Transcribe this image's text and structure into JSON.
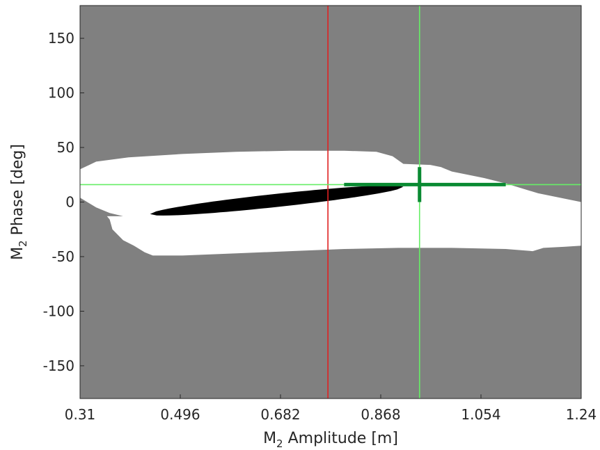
{
  "chart_data": {
    "type": "heatmap",
    "title": "",
    "xlabel": {
      "prefix": "M",
      "sub": "2",
      "suffix": " Amplitude [m]"
    },
    "ylabel": {
      "prefix": "M",
      "sub": "2",
      "suffix": " Phase [deg]"
    },
    "xlim": [
      0.31,
      1.24
    ],
    "ylim": [
      -180,
      180
    ],
    "x_ticks": [
      0.31,
      0.496,
      0.682,
      0.868,
      1.054,
      1.24
    ],
    "x_tick_labels": [
      "0.31",
      "0.496",
      "0.682",
      "0.868",
      "1.054",
      "1.24"
    ],
    "y_ticks": [
      150,
      100,
      50,
      0,
      -50,
      -100,
      -150
    ],
    "y_tick_labels": [
      "150",
      "100",
      "50",
      "0",
      "-50",
      "-100",
      "-150"
    ],
    "grid": false,
    "colors": {
      "background_region": "#808080",
      "feasible_region": "#ffffff",
      "best_region": "#000000",
      "crosshair_line": "#66ee66",
      "estimate_bar": "#0a8a32",
      "reference_line": "#e02020"
    },
    "regions": {
      "feasible_outline": [
        [
          0.31,
          30
        ],
        [
          0.34,
          37
        ],
        [
          0.4,
          41
        ],
        [
          0.5,
          44
        ],
        [
          0.6,
          46
        ],
        [
          0.7,
          47
        ],
        [
          0.8,
          47
        ],
        [
          0.86,
          46
        ],
        [
          0.89,
          42
        ],
        [
          0.91,
          35
        ],
        [
          0.96,
          34
        ],
        [
          0.98,
          32
        ],
        [
          1.0,
          28
        ],
        [
          1.02,
          26
        ],
        [
          1.06,
          22
        ],
        [
          1.1,
          17
        ],
        [
          1.16,
          8
        ],
        [
          1.24,
          0
        ],
        [
          1.24,
          -40
        ],
        [
          1.21,
          -41
        ],
        [
          1.17,
          -42
        ],
        [
          1.15,
          -45
        ],
        [
          1.1,
          -43
        ],
        [
          1.0,
          -42
        ],
        [
          0.9,
          -42
        ],
        [
          0.8,
          -43
        ],
        [
          0.7,
          -45
        ],
        [
          0.6,
          -47
        ],
        [
          0.5,
          -49
        ],
        [
          0.445,
          -49
        ],
        [
          0.43,
          -46
        ],
        [
          0.41,
          -40
        ],
        [
          0.39,
          -35
        ],
        [
          0.37,
          -25
        ],
        [
          0.365,
          -16
        ],
        [
          0.36,
          -13
        ],
        [
          0.39,
          -13
        ],
        [
          0.365,
          -10
        ],
        [
          0.34,
          -5
        ],
        [
          0.31,
          4
        ]
      ],
      "best_fit_ellipse": {
        "endpoints": [
          [
            0.44,
            -11
          ],
          [
            0.91,
            14
          ]
        ],
        "half_width_deg": 6
      }
    },
    "crosshair": {
      "x": 0.94,
      "y": 16
    },
    "estimate_bars": {
      "horizontal": {
        "x": [
          0.8,
          1.1
        ],
        "y": 16
      },
      "vertical": {
        "x": 0.94,
        "y": [
          0,
          32
        ]
      }
    },
    "reference_line": {
      "x": 0.77
    }
  }
}
